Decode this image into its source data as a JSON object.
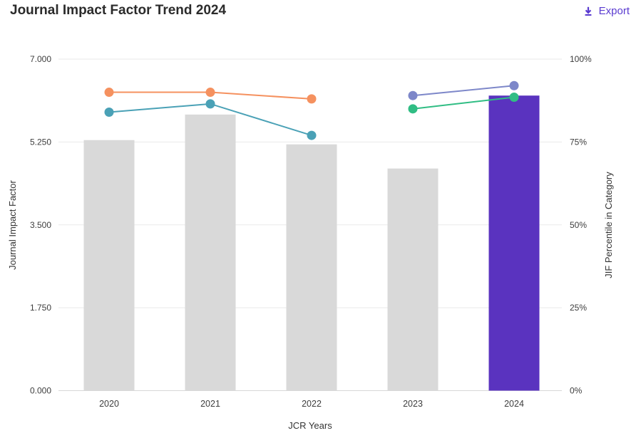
{
  "header": {
    "title": "Journal Impact Factor Trend 2024",
    "export_label": "Export",
    "accent_color": "#5a3bd0"
  },
  "chart_data": {
    "type": "combo-bar-line",
    "title": "Journal Impact Factor Trend 2024",
    "xlabel": "JCR Years",
    "ylabel_left": "Journal Impact Factor",
    "ylabel_right": "JIF Percentile in Category",
    "categories": [
      "2020",
      "2021",
      "2022",
      "2023",
      "2024"
    ],
    "left_axis": {
      "label": "Journal Impact Factor",
      "min": 0,
      "max": 7,
      "ticks": [
        "0.000",
        "1.750",
        "3.500",
        "5.250",
        "7.000"
      ]
    },
    "right_axis": {
      "label": "JIF Percentile in Category",
      "min": 0,
      "max": 100,
      "ticks": [
        "0%",
        "25%",
        "50%",
        "75%",
        "100%"
      ]
    },
    "grid": true,
    "legend": "none",
    "bars": {
      "name": "Journal Impact Factor (bars, left axis)",
      "axis": "left",
      "values": [
        5.29,
        5.83,
        5.2,
        4.69,
        6.23
      ],
      "default_color": "#d9d9d9",
      "highlight_color": "#5a33bf",
      "highlight_index": 4
    },
    "lines": [
      {
        "name": "jif-percentile-series-1",
        "axis": "right",
        "color": "#f5915f",
        "points": [
          {
            "year": "2020",
            "value": 90
          },
          {
            "year": "2021",
            "value": 90
          },
          {
            "year": "2022",
            "value": 88
          }
        ]
      },
      {
        "name": "jif-percentile-series-2",
        "axis": "right",
        "color": "#4aa1b6",
        "points": [
          {
            "year": "2020",
            "value": 84
          },
          {
            "year": "2021",
            "value": 86.5
          },
          {
            "year": "2022",
            "value": 77
          }
        ]
      },
      {
        "name": "jif-percentile-series-3",
        "axis": "right",
        "color": "#7d87c9",
        "points": [
          {
            "year": "2023",
            "value": 89
          },
          {
            "year": "2024",
            "value": 92
          }
        ]
      },
      {
        "name": "jif-percentile-series-4",
        "axis": "right",
        "color": "#30bd84",
        "points": [
          {
            "year": "2023",
            "value": 85
          },
          {
            "year": "2024",
            "value": 88.5
          }
        ]
      }
    ]
  }
}
